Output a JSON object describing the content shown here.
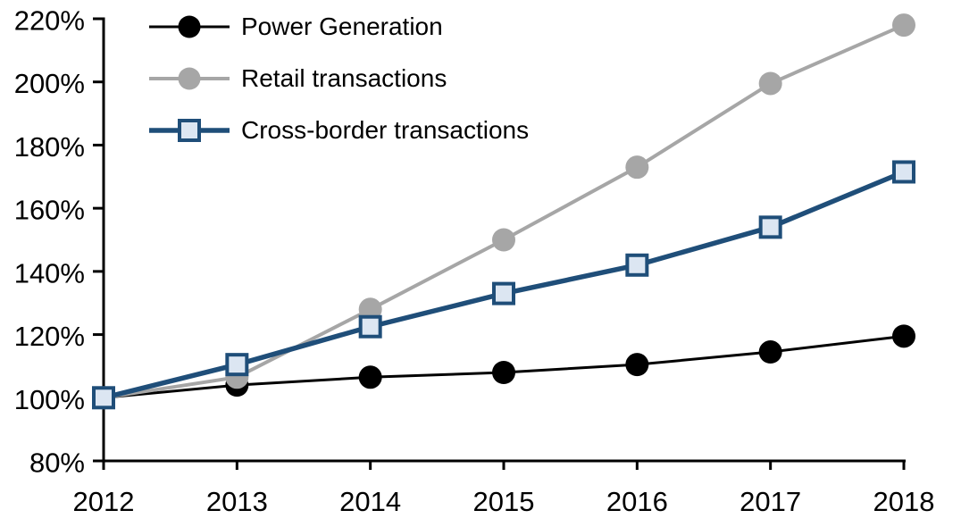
{
  "chart_data": {
    "type": "line",
    "title": "",
    "xlabel": "",
    "ylabel": "",
    "categories": [
      "2012",
      "2013",
      "2014",
      "2015",
      "2016",
      "2017",
      "2018"
    ],
    "series": [
      {
        "name": "Power Generation",
        "slug": "power-generation",
        "color": "#000000",
        "marker": "circle",
        "marker_fill": "#000000",
        "line_width": 3,
        "values": [
          100,
          104,
          106.5,
          108,
          110.5,
          114.5,
          119.5
        ]
      },
      {
        "name": "Retail transactions",
        "slug": "retail-transactions",
        "color": "#A6A6A6",
        "marker": "circle",
        "marker_fill": "#A6A6A6",
        "line_width": 4,
        "values": [
          100,
          106.5,
          128,
          150,
          173,
          199.5,
          218
        ]
      },
      {
        "name": "Cross-border transactions",
        "slug": "cross-border-transactions",
        "color": "#1F4E79",
        "marker": "square",
        "marker_fill": "#DCE6F2",
        "line_width": 5.5,
        "values": [
          100,
          110.5,
          122.5,
          133,
          142,
          154,
          171.5
        ]
      }
    ],
    "ylim": [
      80,
      220
    ],
    "yticks": [
      {
        "value": 220,
        "label": "220%"
      },
      {
        "value": 200,
        "label": "200%"
      },
      {
        "value": 180,
        "label": "180%"
      },
      {
        "value": 160,
        "label": "160%"
      },
      {
        "value": 140,
        "label": "140%"
      },
      {
        "value": 120,
        "label": "120%"
      },
      {
        "value": 100,
        "label": "100%"
      },
      {
        "value": 80,
        "label": "80%"
      }
    ],
    "grid": false,
    "legend_position": "top-left",
    "axis_color": "#000000",
    "background": "#FFFFFF"
  }
}
